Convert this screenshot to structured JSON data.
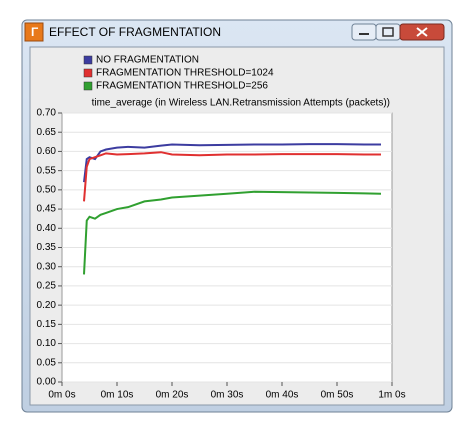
{
  "chart_data": {
    "type": "line",
    "title": "EFFECT OF FRAGMENTATION",
    "y_label": "time_average (in Wireless LAN.Retransmission Attempts (packets))",
    "x": [
      4,
      4.5,
      5,
      6,
      7,
      8,
      10,
      12,
      15,
      18,
      20,
      25,
      30,
      35,
      40,
      45,
      50,
      55,
      58
    ],
    "series": [
      {
        "name": "NO FRAGMENTATION",
        "color": "#3c3ca0",
        "values": [
          0.52,
          0.58,
          0.585,
          0.58,
          0.6,
          0.605,
          0.61,
          0.612,
          0.61,
          0.615,
          0.618,
          0.616,
          0.617,
          0.618,
          0.618,
          0.619,
          0.619,
          0.618,
          0.618
        ]
      },
      {
        "name": "FRAGMENTATION THRESHOLD=1024",
        "color": "#e03030",
        "values": [
          0.47,
          0.56,
          0.58,
          0.585,
          0.59,
          0.595,
          0.592,
          0.593,
          0.595,
          0.598,
          0.592,
          0.59,
          0.592,
          0.592,
          0.593,
          0.593,
          0.593,
          0.592,
          0.592
        ]
      },
      {
        "name": "FRAGMENTATION THRESHOLD=256",
        "color": "#30a030",
        "values": [
          0.28,
          0.42,
          0.43,
          0.425,
          0.435,
          0.44,
          0.45,
          0.455,
          0.47,
          0.475,
          0.48,
          0.485,
          0.49,
          0.495,
          0.494,
          0.493,
          0.492,
          0.491,
          0.49
        ]
      }
    ],
    "xlim": [
      0,
      60
    ],
    "xticks": [
      {
        "value": 0,
        "label": "0m 0s"
      },
      {
        "value": 10,
        "label": "0m 10s"
      },
      {
        "value": 20,
        "label": "0m 20s"
      },
      {
        "value": 30,
        "label": "0m 30s"
      },
      {
        "value": 40,
        "label": "0m 40s"
      },
      {
        "value": 50,
        "label": "0m 50s"
      },
      {
        "value": 60,
        "label": "1m 0s"
      }
    ],
    "ylim": [
      0,
      0.7
    ],
    "yticks": [
      {
        "value": 0,
        "label": "0.00"
      },
      {
        "value": 0.05,
        "label": "0.05"
      },
      {
        "value": 0.1,
        "label": "0.10"
      },
      {
        "value": 0.15,
        "label": "0.15"
      },
      {
        "value": 0.2,
        "label": "0.20"
      },
      {
        "value": 0.25,
        "label": "0.25"
      },
      {
        "value": 0.3,
        "label": "0.30"
      },
      {
        "value": 0.35,
        "label": "0.35"
      },
      {
        "value": 0.4,
        "label": "0.40"
      },
      {
        "value": 0.45,
        "label": "0.45"
      },
      {
        "value": 0.5,
        "label": "0.50"
      },
      {
        "value": 0.55,
        "label": "0.55"
      },
      {
        "value": 0.6,
        "label": "0.60"
      },
      {
        "value": 0.65,
        "label": "0.65"
      },
      {
        "value": 0.7,
        "label": "0.70"
      }
    ],
    "grid": true
  }
}
